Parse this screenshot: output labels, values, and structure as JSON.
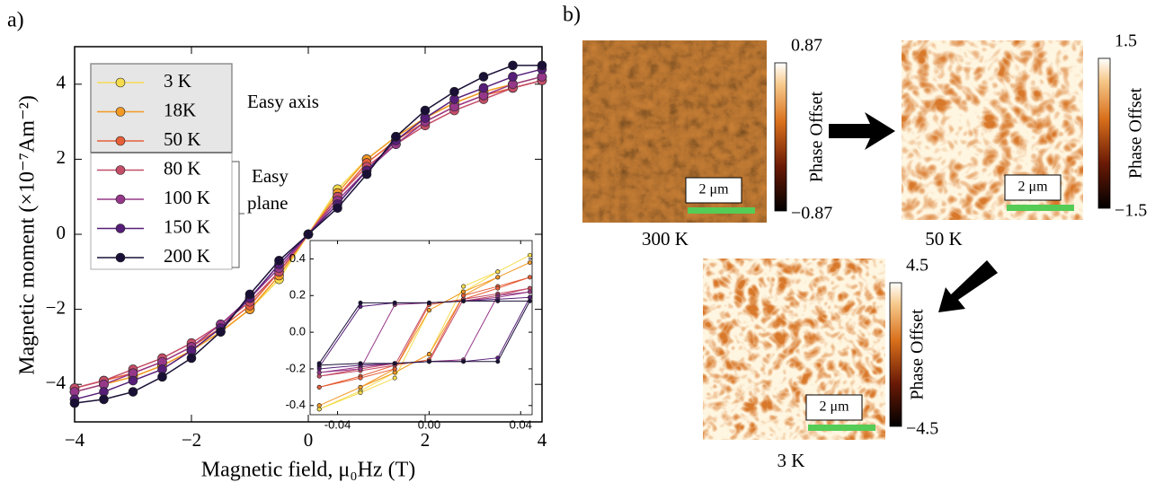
{
  "panel_a": {
    "label": "a)",
    "annotations": [
      "Easy axis",
      "Easy",
      "plane"
    ]
  },
  "chart_data": [
    {
      "type": "line",
      "xlabel": "Magnetic field, μ₀Hz (T)",
      "ylabel": "Magnetic moment (×10⁻⁷Am⁻²)",
      "xlim": [
        -4,
        4
      ],
      "ylim": [
        -5,
        5
      ],
      "xticks": [
        {
          "value": -4,
          "label": "−4"
        },
        {
          "value": -2,
          "label": "−2"
        },
        0,
        2,
        4
      ],
      "yticks": [
        {
          "value": -4,
          "label": "−4"
        },
        {
          "value": -2,
          "label": "−2"
        },
        0,
        2,
        4
      ],
      "x": [
        -4,
        -3.5,
        -3,
        -2.5,
        -2,
        -1.5,
        -1,
        -0.5,
        0,
        0.5,
        1,
        1.5,
        2,
        2.5,
        3,
        3.5,
        4
      ],
      "series": [
        {
          "name": "3 K",
          "color": "#f5dc4e",
          "values": [
            -4.2,
            -4.0,
            -3.8,
            -3.5,
            -3.1,
            -2.6,
            -2.0,
            -1.2,
            0,
            1.2,
            2.0,
            2.6,
            3.1,
            3.5,
            3.8,
            4.0,
            4.2
          ]
        },
        {
          "name": "18K",
          "color": "#f29a26",
          "values": [
            -4.2,
            -4.0,
            -3.8,
            -3.5,
            -3.1,
            -2.6,
            -2.0,
            -1.1,
            0,
            1.1,
            2.0,
            2.6,
            3.1,
            3.5,
            3.8,
            4.0,
            4.2
          ]
        },
        {
          "name": "50 K",
          "color": "#e65f38",
          "values": [
            -4.1,
            -3.9,
            -3.7,
            -3.4,
            -3.0,
            -2.5,
            -1.9,
            -1.0,
            0,
            1.0,
            1.9,
            2.5,
            3.0,
            3.4,
            3.7,
            3.9,
            4.1
          ]
        },
        {
          "name": "80 K",
          "color": "#c44d68",
          "values": [
            -4.1,
            -3.9,
            -3.6,
            -3.3,
            -2.9,
            -2.4,
            -1.8,
            -1.0,
            0,
            1.0,
            1.8,
            2.4,
            2.9,
            3.3,
            3.6,
            3.9,
            4.1
          ]
        },
        {
          "name": "100 K",
          "color": "#963889",
          "values": [
            -4.2,
            -4.0,
            -3.7,
            -3.4,
            -3.0,
            -2.4,
            -1.7,
            -0.9,
            0,
            0.9,
            1.7,
            2.4,
            3.0,
            3.4,
            3.7,
            4.0,
            4.2
          ]
        },
        {
          "name": "150 K",
          "color": "#561e78",
          "values": [
            -4.4,
            -4.2,
            -3.9,
            -3.6,
            -3.1,
            -2.5,
            -1.7,
            -0.8,
            0,
            0.8,
            1.7,
            2.5,
            3.1,
            3.6,
            3.9,
            4.2,
            4.4
          ]
        },
        {
          "name": "200 K",
          "color": "#1a1036",
          "values": [
            -4.5,
            -4.4,
            -4.2,
            -3.8,
            -3.3,
            -2.6,
            -1.6,
            -0.7,
            0,
            0.7,
            1.6,
            2.6,
            3.3,
            3.8,
            4.2,
            4.5,
            4.5
          ]
        }
      ]
    },
    {
      "type": "line",
      "xlim": [
        -0.052,
        0.045
      ],
      "ylim": [
        -0.45,
        0.5
      ],
      "xticks": [
        {
          "value": -0.04,
          "label": "-0.04"
        },
        {
          "value": 0,
          "label": "0.00"
        },
        0.04
      ],
      "yticks": [
        {
          "value": -0.4,
          "label": "-0.4"
        },
        {
          "value": -0.2,
          "label": "-0.2"
        },
        {
          "value": 0,
          "label": "0.0"
        },
        0.2,
        0.4
      ],
      "x": [
        -0.048,
        -0.03,
        -0.015,
        0,
        0.015,
        0.03,
        0.044,
        0.03,
        0.015,
        0,
        -0.015,
        -0.03,
        -0.048
      ],
      "series": [
        {
          "color": "#f5dc4e",
          "values": [
            -0.42,
            -0.32,
            -0.22,
            -0.12,
            0.25,
            0.33,
            0.42,
            0.33,
            0.22,
            0.12,
            -0.25,
            -0.33,
            -0.42
          ]
        },
        {
          "color": "#f29a26",
          "values": [
            -0.4,
            -0.3,
            -0.2,
            0.12,
            0.22,
            0.3,
            0.38,
            0.3,
            0.2,
            -0.12,
            -0.22,
            -0.3,
            -0.4
          ]
        },
        {
          "color": "#e65f38",
          "values": [
            -0.3,
            -0.24,
            -0.18,
            -0.15,
            0.2,
            0.25,
            0.3,
            0.24,
            0.18,
            0.15,
            -0.2,
            -0.25,
            -0.3
          ]
        },
        {
          "color": "#c44d68",
          "values": [
            -0.24,
            -0.2,
            -0.17,
            -0.16,
            0.18,
            0.21,
            0.24,
            0.2,
            0.17,
            0.16,
            -0.18,
            -0.21,
            -0.24
          ]
        },
        {
          "color": "#963889",
          "values": [
            -0.22,
            -0.19,
            -0.17,
            -0.16,
            -0.15,
            0.2,
            0.22,
            0.19,
            0.17,
            0.16,
            0.15,
            -0.2,
            -0.22
          ]
        },
        {
          "color": "#561e78",
          "values": [
            -0.2,
            -0.18,
            -0.17,
            -0.16,
            -0.16,
            -0.14,
            0.19,
            0.18,
            0.17,
            0.16,
            0.16,
            0.14,
            -0.19
          ]
        },
        {
          "color": "#1a1036",
          "values": [
            -0.18,
            -0.17,
            -0.17,
            -0.16,
            -0.16,
            -0.16,
            0.17,
            0.17,
            0.17,
            0.16,
            0.16,
            0.16,
            -0.17
          ]
        }
      ]
    }
  ],
  "panel_b": {
    "label": "b)",
    "maps": [
      {
        "temperature": "300 K",
        "scale_bar": "2 μm",
        "colorbar_title": "Phase Offset",
        "colorbar_ticks": [
          {
            "value": -0.87,
            "label": "−0.87"
          },
          0.87
        ]
      },
      {
        "temperature": "50 K",
        "scale_bar": "2 μm",
        "colorbar_title": "Phase Offset",
        "colorbar_ticks": [
          {
            "value": -1.5,
            "label": "−1.5"
          },
          1.5
        ]
      },
      {
        "temperature": "3 K",
        "scale_bar": "2 μm",
        "colorbar_title": "Phase Offset",
        "colorbar_ticks": [
          {
            "value": -4.5,
            "label": "−4.5"
          },
          4.5
        ]
      }
    ]
  }
}
